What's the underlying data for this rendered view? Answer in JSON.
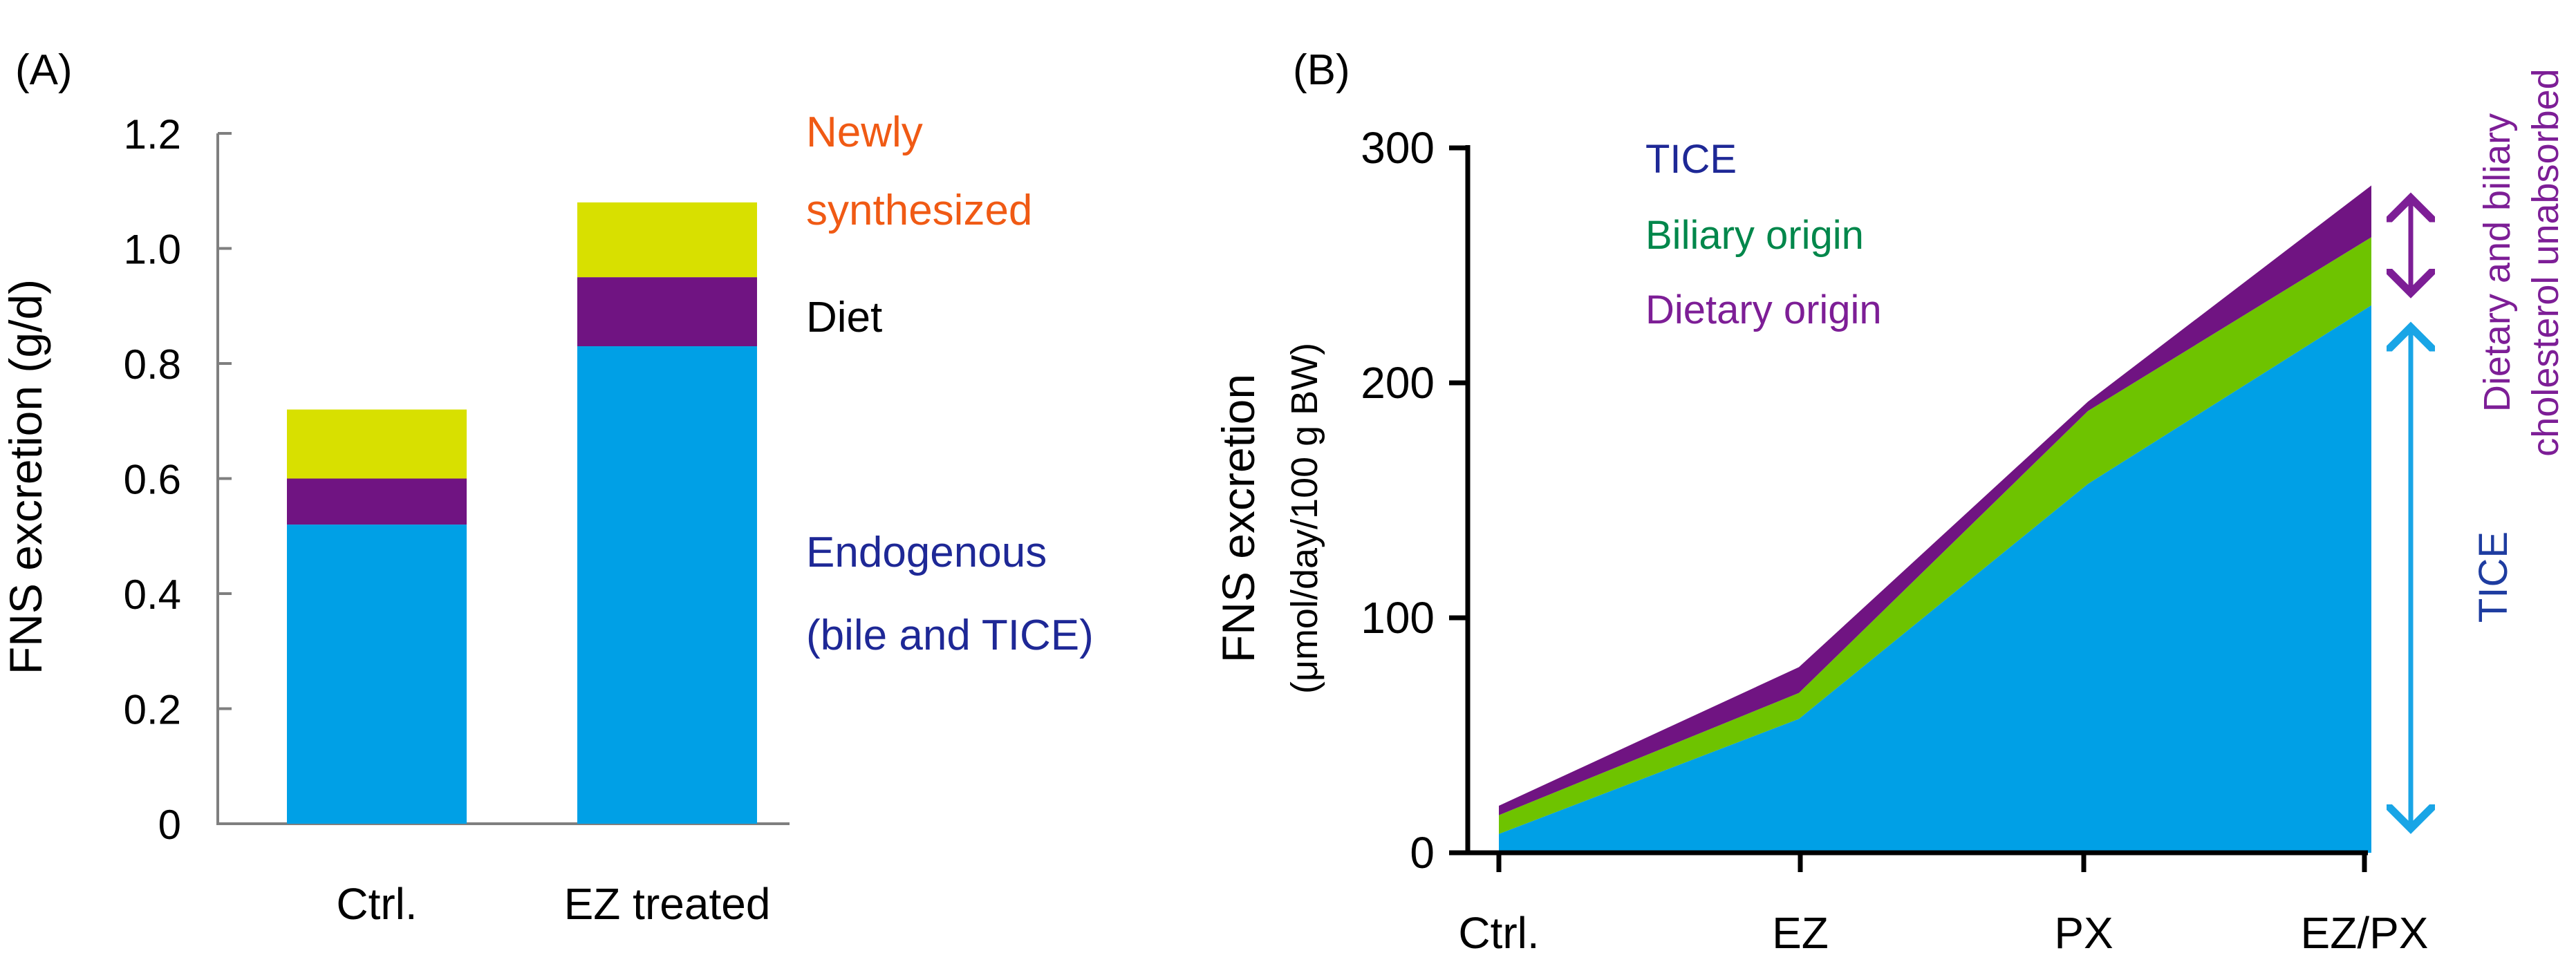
{
  "chart_data": [
    {
      "panel_label": "(A)",
      "type": "bar",
      "stacked": true,
      "categories": [
        "Ctrl.",
        "EZ treated"
      ],
      "ylabel": "FNS excretion (g/d)",
      "xlabel": "",
      "ylim": [
        0,
        1.2
      ],
      "yticks": [
        {
          "value": 0,
          "label": "0"
        },
        {
          "value": 0.2,
          "label": "0.2"
        },
        {
          "value": 0.4,
          "label": "0.4"
        },
        {
          "value": 0.6,
          "label": "0.6"
        },
        {
          "value": 0.8,
          "label": "0.8"
        },
        {
          "value": 1.0,
          "label": "1.0"
        },
        {
          "value": 1.2,
          "label": "1.2"
        }
      ],
      "series": [
        {
          "name": "Endogenous (bile and TICE)",
          "color": "#00a0e6",
          "values": [
            0.52,
            0.83
          ]
        },
        {
          "name": "Diet",
          "color": "#701482",
          "values": [
            0.08,
            0.12
          ]
        },
        {
          "name": "Newly synthesized",
          "color": "#d8e000",
          "values": [
            0.12,
            0.13
          ]
        }
      ],
      "annotations": [
        {
          "lines": [
            "Newly",
            "synthesized"
          ],
          "color": "#f05a14"
        },
        {
          "lines": [
            "Diet"
          ],
          "color": "#000000"
        },
        {
          "lines": [
            "Endogenous",
            "(bile and TICE)"
          ],
          "color": "#1e2896"
        }
      ]
    },
    {
      "panel_label": "(B)",
      "type": "area",
      "stacked": true,
      "categories": [
        "Ctrl.",
        "EZ",
        "PX",
        "EZ/PX"
      ],
      "ylabel": "FNS excretion",
      "ylabel_sub": "(μmol/day/100 g BW)",
      "ylim": [
        0,
        300
      ],
      "yticks": [
        {
          "value": 0,
          "label": "0"
        },
        {
          "value": 100,
          "label": "100"
        },
        {
          "value": 200,
          "label": "200"
        },
        {
          "value": 300,
          "label": "300"
        }
      ],
      "series": [
        {
          "name": "TICE",
          "color": "#00a0e6",
          "values": [
            8,
            57,
            157,
            233
          ]
        },
        {
          "name": "Biliary origin",
          "color": "#6ec300",
          "values": [
            8,
            11,
            31,
            29
          ]
        },
        {
          "name": "Dietary origin",
          "color": "#701482",
          "values": [
            4,
            11,
            4,
            22
          ]
        }
      ],
      "legend": [
        {
          "label": "TICE",
          "color": "#1e2896"
        },
        {
          "label": "Biliary origin",
          "color": "#00874b"
        },
        {
          "label": "Dietary origin",
          "color": "#7d1e96"
        }
      ],
      "brackets": [
        {
          "lines": [
            "Dietary and biliary",
            "cholesterol unabsorbed"
          ],
          "color": "#7d1e96",
          "from": 233,
          "to": 284
        },
        {
          "lines": [
            "TICE"
          ],
          "color": "#1e3ca0",
          "from": 5,
          "to": 229
        }
      ]
    }
  ]
}
